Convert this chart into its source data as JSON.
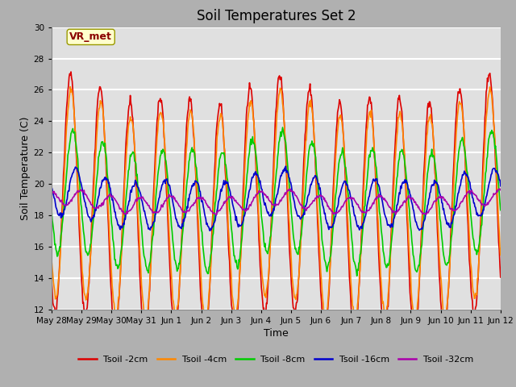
{
  "title": "Soil Temperatures Set 2",
  "xlabel": "Time",
  "ylabel": "Soil Temperature (C)",
  "ylim": [
    12,
    30
  ],
  "yticks": [
    12,
    14,
    16,
    18,
    20,
    22,
    24,
    26,
    28,
    30
  ],
  "annotation": "VR_met",
  "bg_color": "#e0e0e0",
  "grid_color": "#ffffff",
  "fig_bg": "#c8c8c8",
  "series": [
    {
      "label": "Tsoil -2cm",
      "color": "#dd0000",
      "lw": 1.2
    },
    {
      "label": "Tsoil -4cm",
      "color": "#ff8800",
      "lw": 1.2
    },
    {
      "label": "Tsoil -8cm",
      "color": "#00cc00",
      "lw": 1.2
    },
    {
      "label": "Tsoil -16cm",
      "color": "#0000cc",
      "lw": 1.2
    },
    {
      "label": "Tsoil -32cm",
      "color": "#aa00aa",
      "lw": 1.2
    }
  ],
  "x_tick_labels": [
    "May 28",
    "May 29",
    "May 30",
    "May 31",
    "Jun 1",
    "Jun 2",
    "Jun 3",
    "Jun 4",
    "Jun 5",
    "Jun 6",
    "Jun 7",
    "Jun 8",
    "Jun 9",
    "Jun 10",
    "Jun 11",
    "Jun 12"
  ],
  "legend_fontsize": 8,
  "title_fontsize": 12,
  "ylabel_fontsize": 9,
  "xlabel_fontsize": 9,
  "tick_fontsize": 7.5
}
